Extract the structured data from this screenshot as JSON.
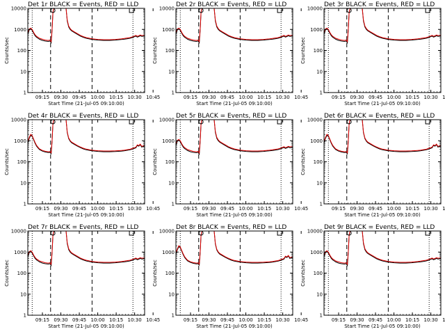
{
  "chart_data": {
    "type": "line",
    "scale": "log",
    "ylim": [
      1,
      10000
    ],
    "y_ticks": [
      1,
      10,
      100,
      1000,
      10000
    ],
    "y_tick_labels": [
      "1",
      "10",
      "100",
      "1000",
      "10000"
    ],
    "x_range_minutes": [
      0,
      40
    ],
    "x_tick_labels": [
      "09:15",
      "09:30",
      "09:45",
      "10:00",
      "10:15",
      "10:30",
      "10:45"
    ],
    "ylabel": "Counts/sec",
    "xlabel": "Start Time (21-Jul-05 09:10:00)",
    "series_colors": {
      "events": "#000000",
      "lld": "#e00000"
    },
    "panels": [
      {
        "title": "Det 1r BLACK = Events, RED = LLD",
        "profile": "a"
      },
      {
        "title": "Det 2r BLACK = Events, RED = LLD",
        "profile": "a"
      },
      {
        "title": "Det 3r BLACK = Events, RED = LLD",
        "profile": "a"
      },
      {
        "title": "Det 4r BLACK = Events, RED = LLD",
        "profile": "b"
      },
      {
        "title": "Det 5r BLACK = Events, RED = LLD",
        "profile": "a"
      },
      {
        "title": "Det 6r BLACK = Events, RED = LLD",
        "profile": "b"
      },
      {
        "title": "Det 7r BLACK = Events, RED = LLD",
        "profile": "a"
      },
      {
        "title": "Det 8r BLACK = Events, RED = LLD",
        "profile": "b"
      },
      {
        "title": "Det 9r BLACK = Events, RED = LLD",
        "profile": "a"
      }
    ],
    "profiles": {
      "a": {
        "events": [
          [
            0,
            600
          ],
          [
            0.5,
            950
          ],
          [
            1,
            1050
          ],
          [
            1.5,
            900
          ],
          [
            2,
            650
          ],
          [
            2.5,
            500
          ],
          [
            3,
            420
          ],
          [
            3.5,
            380
          ],
          [
            4,
            340
          ],
          [
            5,
            300
          ],
          [
            6,
            280
          ],
          [
            7,
            270
          ],
          [
            7.6,
            280
          ],
          [
            8,
            230
          ],
          [
            8.3,
            900
          ],
          [
            8.6,
            6000
          ],
          [
            8.9,
            10000
          ],
          [
            13.1,
            10000
          ],
          [
            13.5,
            2500
          ],
          [
            14,
            1300
          ],
          [
            14.5,
            1000
          ],
          [
            15,
            850
          ],
          [
            16,
            700
          ],
          [
            17,
            580
          ],
          [
            18,
            480
          ],
          [
            19,
            420
          ],
          [
            20,
            380
          ],
          [
            22,
            330
          ],
          [
            24,
            310
          ],
          [
            26,
            300
          ],
          [
            28,
            300
          ],
          [
            30,
            310
          ],
          [
            32,
            330
          ],
          [
            33,
            340
          ],
          [
            34,
            360
          ],
          [
            35,
            380
          ],
          [
            36,
            420
          ],
          [
            37,
            480
          ],
          [
            37.5,
            430
          ],
          [
            38,
            460
          ],
          [
            38.5,
            500
          ],
          [
            39,
            470
          ],
          [
            40,
            480
          ]
        ],
        "lld": [
          [
            0,
            700
          ],
          [
            0.5,
            1050
          ],
          [
            1,
            1150
          ],
          [
            1.5,
            1000
          ],
          [
            2,
            720
          ],
          [
            2.5,
            560
          ],
          [
            3,
            470
          ],
          [
            3.5,
            420
          ],
          [
            4,
            380
          ],
          [
            5,
            340
          ],
          [
            6,
            310
          ],
          [
            7,
            300
          ],
          [
            7.6,
            310
          ],
          [
            8,
            260
          ],
          [
            8.3,
            1000
          ],
          [
            8.6,
            6500
          ],
          [
            8.9,
            10000
          ],
          [
            13.1,
            10000
          ],
          [
            13.5,
            2800
          ],
          [
            14,
            1450
          ],
          [
            14.5,
            1100
          ],
          [
            15,
            920
          ],
          [
            16,
            760
          ],
          [
            17,
            630
          ],
          [
            18,
            520
          ],
          [
            19,
            455
          ],
          [
            20,
            410
          ],
          [
            22,
            360
          ],
          [
            24,
            335
          ],
          [
            26,
            325
          ],
          [
            28,
            325
          ],
          [
            30,
            335
          ],
          [
            32,
            355
          ],
          [
            33,
            370
          ],
          [
            34,
            390
          ],
          [
            35,
            410
          ],
          [
            36,
            450
          ],
          [
            37,
            520
          ],
          [
            37.5,
            470
          ],
          [
            38,
            500
          ],
          [
            38.5,
            540
          ],
          [
            39,
            510
          ],
          [
            40,
            520
          ]
        ]
      },
      "b": {
        "events": [
          [
            0,
            800
          ],
          [
            0.5,
            1300
          ],
          [
            1,
            1800
          ],
          [
            1.5,
            1600
          ],
          [
            2,
            1100
          ],
          [
            2.5,
            750
          ],
          [
            3,
            550
          ],
          [
            3.5,
            450
          ],
          [
            4,
            380
          ],
          [
            5,
            320
          ],
          [
            6,
            290
          ],
          [
            7,
            275
          ],
          [
            7.6,
            280
          ],
          [
            8,
            240
          ],
          [
            8.3,
            900
          ],
          [
            8.6,
            6000
          ],
          [
            8.9,
            10000
          ],
          [
            13.1,
            10000
          ],
          [
            13.5,
            2400
          ],
          [
            14,
            1250
          ],
          [
            14.5,
            950
          ],
          [
            15,
            800
          ],
          [
            16,
            660
          ],
          [
            17,
            550
          ],
          [
            18,
            470
          ],
          [
            19,
            410
          ],
          [
            20,
            370
          ],
          [
            22,
            330
          ],
          [
            24,
            310
          ],
          [
            26,
            300
          ],
          [
            28,
            300
          ],
          [
            30,
            305
          ],
          [
            32,
            320
          ],
          [
            33,
            330
          ],
          [
            34,
            350
          ],
          [
            35,
            370
          ],
          [
            36,
            410
          ],
          [
            37,
            460
          ],
          [
            37.5,
            600
          ],
          [
            38,
            550
          ],
          [
            38.5,
            650
          ],
          [
            39,
            500
          ],
          [
            40,
            560
          ]
        ],
        "lld": [
          [
            0,
            900
          ],
          [
            0.5,
            1450
          ],
          [
            1,
            2000
          ],
          [
            1.5,
            1750
          ],
          [
            2,
            1200
          ],
          [
            2.5,
            820
          ],
          [
            3,
            600
          ],
          [
            3.5,
            490
          ],
          [
            4,
            410
          ],
          [
            5,
            345
          ],
          [
            6,
            315
          ],
          [
            7,
            300
          ],
          [
            7.6,
            305
          ],
          [
            8,
            265
          ],
          [
            8.3,
            1000
          ],
          [
            8.6,
            6500
          ],
          [
            8.9,
            10000
          ],
          [
            13.1,
            10000
          ],
          [
            13.5,
            2600
          ],
          [
            14,
            1350
          ],
          [
            14.5,
            1030
          ],
          [
            15,
            860
          ],
          [
            16,
            710
          ],
          [
            17,
            590
          ],
          [
            18,
            505
          ],
          [
            19,
            440
          ],
          [
            20,
            400
          ],
          [
            22,
            355
          ],
          [
            24,
            335
          ],
          [
            26,
            325
          ],
          [
            28,
            325
          ],
          [
            30,
            330
          ],
          [
            32,
            345
          ],
          [
            33,
            355
          ],
          [
            34,
            375
          ],
          [
            35,
            395
          ],
          [
            36,
            440
          ],
          [
            37,
            495
          ],
          [
            37.5,
            640
          ],
          [
            38,
            590
          ],
          [
            38.5,
            690
          ],
          [
            39,
            540
          ],
          [
            40,
            600
          ]
        ]
      }
    },
    "dashed_vlines_minutes": [
      7.8,
      22
    ],
    "dotted_vlines_minutes": [
      1.5,
      36
    ],
    "markers": [
      {
        "symbol": "circle",
        "x_minutes": 8.6
      },
      {
        "symbol": "square",
        "x_minutes": 35.5
      }
    ]
  }
}
